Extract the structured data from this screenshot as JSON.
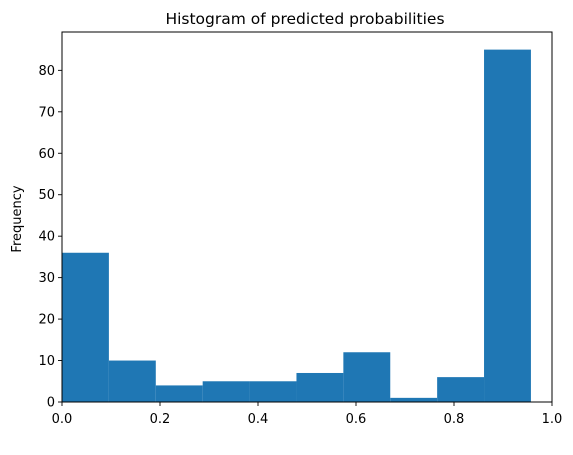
{
  "chart_data": {
    "type": "bar",
    "title": "Histogram of predicted probabilities",
    "xlabel": "",
    "ylabel": "Frequency",
    "xlim": [
      0.0,
      1.0
    ],
    "ylim": [
      0,
      89.25
    ],
    "bin_edges": [
      0.0,
      0.0957,
      0.1914,
      0.2871,
      0.3828,
      0.4785,
      0.5742,
      0.6699,
      0.7656,
      0.8613,
      0.957
    ],
    "values": [
      36,
      10,
      4,
      5,
      5,
      7,
      12,
      1,
      6,
      85
    ],
    "x_ticks": [
      0.0,
      0.2,
      0.4,
      0.6,
      0.8,
      1.0
    ],
    "x_tick_labels": [
      "0.0",
      "0.2",
      "0.4",
      "0.6",
      "0.8",
      "1.0"
    ],
    "y_ticks": [
      0,
      10,
      20,
      30,
      40,
      50,
      60,
      70,
      80
    ],
    "y_tick_labels": [
      "0",
      "10",
      "20",
      "30",
      "40",
      "50",
      "60",
      "70",
      "80"
    ],
    "bar_color": "#1f77b4",
    "grid": false,
    "legend": "none"
  }
}
